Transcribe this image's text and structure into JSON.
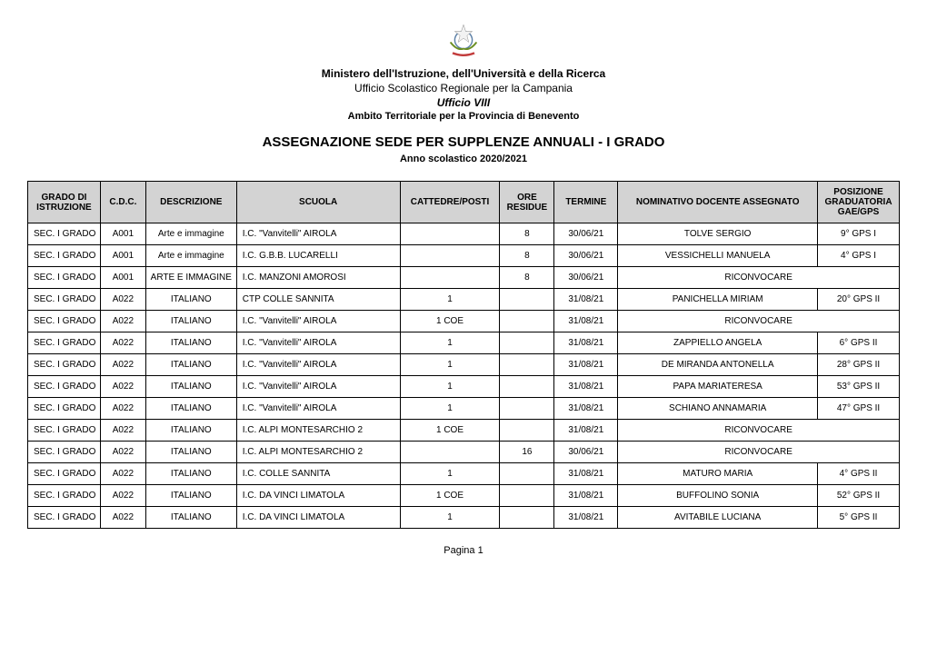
{
  "header": {
    "ministry": "Ministero dell'Istruzione, dell'Università e della Ricerca",
    "regional": "Ufficio Scolastico Regionale per la Campania",
    "office": "Ufficio VIII",
    "ambit": "Ambito Territoriale per la Provincia di Benevento",
    "title": "ASSEGNAZIONE SEDE  PER SUPPLENZE ANNUALI - I GRADO",
    "subtitle": "Anno scolastico 2020/2021"
  },
  "columns": [
    "GRADO DI ISTRUZIONE",
    "C.D.C.",
    "DESCRIZIONE",
    "SCUOLA",
    "CATTEDRE/POSTI",
    "ORE RESIDUE",
    "TERMINE",
    "NOMINATIVO DOCENTE ASSEGNATO",
    "POSIZIONE GRADUATORIA GAE/GPS"
  ],
  "rows": [
    {
      "grado": "SEC. I GRADO",
      "cdc": "A001",
      "desc": "Arte e immagine",
      "scuola": "I.C.  \"Vanvitelli\" AIROLA",
      "cattedre": "",
      "ore": "8",
      "termine": "30/06/21",
      "nome": "TOLVE SERGIO",
      "pos": "9° GPS I",
      "merged": false
    },
    {
      "grado": "SEC. I GRADO",
      "cdc": "A001",
      "desc": "Arte e immagine",
      "scuola": "I.C. G.B.B. LUCARELLI",
      "cattedre": "",
      "ore": "8",
      "termine": "30/06/21",
      "nome": "VESSICHELLI MANUELA",
      "pos": "4° GPS I",
      "merged": false
    },
    {
      "grado": "SEC. I GRADO",
      "cdc": "A001",
      "desc": "ARTE E IMMAGINE",
      "scuola": "I.C. MANZONI AMOROSI",
      "cattedre": "",
      "ore": "8",
      "termine": "30/06/21",
      "nome": "RICONVOCARE",
      "pos": "",
      "merged": true
    },
    {
      "grado": "SEC. I GRADO",
      "cdc": "A022",
      "desc": "ITALIANO",
      "scuola": "CTP COLLE SANNITA",
      "cattedre": "1",
      "ore": "",
      "termine": "31/08/21",
      "nome": "PANICHELLA MIRIAM",
      "pos": "20° GPS II",
      "merged": false
    },
    {
      "grado": "SEC. I GRADO",
      "cdc": "A022",
      "desc": "ITALIANO",
      "scuola": "I.C.  \"Vanvitelli\" AIROLA",
      "cattedre": "1 COE",
      "ore": "",
      "termine": "31/08/21",
      "nome": "RICONVOCARE",
      "pos": "",
      "merged": true
    },
    {
      "grado": "SEC. I GRADO",
      "cdc": "A022",
      "desc": "ITALIANO",
      "scuola": "I.C.  \"Vanvitelli\" AIROLA",
      "cattedre": "1",
      "ore": "",
      "termine": "31/08/21",
      "nome": "ZAPPIELLO ANGELA",
      "pos": "6° GPS II",
      "merged": false
    },
    {
      "grado": "SEC. I GRADO",
      "cdc": "A022",
      "desc": "ITALIANO",
      "scuola": "I.C.  \"Vanvitelli\" AIROLA",
      "cattedre": "1",
      "ore": "",
      "termine": "31/08/21",
      "nome": "DE MIRANDA ANTONELLA",
      "pos": "28° GPS II",
      "merged": false
    },
    {
      "grado": "SEC. I GRADO",
      "cdc": "A022",
      "desc": "ITALIANO",
      "scuola": "I.C.  \"Vanvitelli\" AIROLA",
      "cattedre": "1",
      "ore": "",
      "termine": "31/08/21",
      "nome": "PAPA MARIATERESA",
      "pos": "53° GPS II",
      "merged": false
    },
    {
      "grado": "SEC. I GRADO",
      "cdc": "A022",
      "desc": "ITALIANO",
      "scuola": "I.C.  \"Vanvitelli\" AIROLA",
      "cattedre": "1",
      "ore": "",
      "termine": "31/08/21",
      "nome": "SCHIANO ANNAMARIA",
      "pos": "47° GPS II",
      "merged": false
    },
    {
      "grado": "SEC. I GRADO",
      "cdc": "A022",
      "desc": "ITALIANO",
      "scuola": "I.C. ALPI MONTESARCHIO 2",
      "cattedre": "1 COE",
      "ore": "",
      "termine": "31/08/21",
      "nome": "RICONVOCARE",
      "pos": "",
      "merged": true
    },
    {
      "grado": "SEC. I GRADO",
      "cdc": "A022",
      "desc": "ITALIANO",
      "scuola": "I.C. ALPI MONTESARCHIO 2",
      "cattedre": "",
      "ore": "16",
      "termine": "30/06/21",
      "nome": "RICONVOCARE",
      "pos": "",
      "merged": true
    },
    {
      "grado": "SEC. I GRADO",
      "cdc": "A022",
      "desc": "ITALIANO",
      "scuola": "I.C. COLLE SANNITA",
      "cattedre": "1",
      "ore": "",
      "termine": "31/08/21",
      "nome": "MATURO MARIA",
      "pos": "4° GPS II",
      "merged": false
    },
    {
      "grado": "SEC. I GRADO",
      "cdc": "A022",
      "desc": "ITALIANO",
      "scuola": "I.C. DA VINCI LIMATOLA",
      "cattedre": "1 COE",
      "ore": "",
      "termine": "31/08/21",
      "nome": "BUFFOLINO SONIA",
      "pos": "52° GPS II",
      "merged": false
    },
    {
      "grado": "SEC. I GRADO",
      "cdc": "A022",
      "desc": "ITALIANO",
      "scuola": "I.C. DA VINCI LIMATOLA",
      "cattedre": "1",
      "ore": "",
      "termine": "31/08/21",
      "nome": "AVITABILE LUCIANA",
      "pos": "5° GPS II",
      "merged": false
    }
  ],
  "footer": {
    "page": "Pagina 1"
  },
  "style": {
    "header_bg": "#d3d3d3",
    "border_color": "#000000",
    "font_family": "Arial",
    "body_bg": "#ffffff"
  }
}
